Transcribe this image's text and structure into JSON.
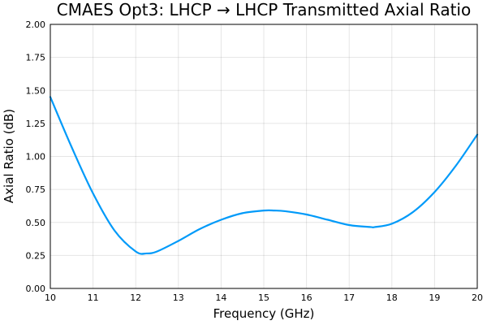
{
  "chart_data": {
    "type": "line",
    "title": "CMAES Opt3: LHCP → LHCP Transmitted Axial Ratio",
    "xlabel": "Frequency (GHz)",
    "ylabel": "Axial Ratio (dB)",
    "xlim": [
      10,
      20
    ],
    "ylim": [
      0,
      2
    ],
    "xticks": [
      10,
      11,
      12,
      13,
      14,
      15,
      16,
      17,
      18,
      19,
      20
    ],
    "xtick_labels": [
      "10",
      "11",
      "12",
      "13",
      "14",
      "15",
      "16",
      "17",
      "18",
      "19",
      "20"
    ],
    "yticks": [
      0,
      0.25,
      0.5,
      0.75,
      1.0,
      1.25,
      1.5,
      1.75,
      2.0
    ],
    "ytick_labels": [
      "0.00",
      "0.25",
      "0.50",
      "0.75",
      "1.00",
      "1.25",
      "1.50",
      "1.75",
      "2.00"
    ],
    "grid": true,
    "legend": "none",
    "series": [
      {
        "color": "#009af9",
        "x": [
          10,
          10.5,
          11,
          11.5,
          12,
          12.25,
          12.5,
          13,
          13.5,
          14,
          14.5,
          15,
          15.25,
          15.5,
          16,
          16.5,
          17,
          17.5,
          17.6,
          18,
          18.5,
          19,
          19.5,
          20
        ],
        "y": [
          1.45,
          1.07,
          0.72,
          0.44,
          0.28,
          0.265,
          0.28,
          0.36,
          0.45,
          0.52,
          0.57,
          0.59,
          0.59,
          0.585,
          0.56,
          0.52,
          0.48,
          0.465,
          0.465,
          0.49,
          0.58,
          0.73,
          0.93,
          1.165
        ]
      }
    ]
  }
}
